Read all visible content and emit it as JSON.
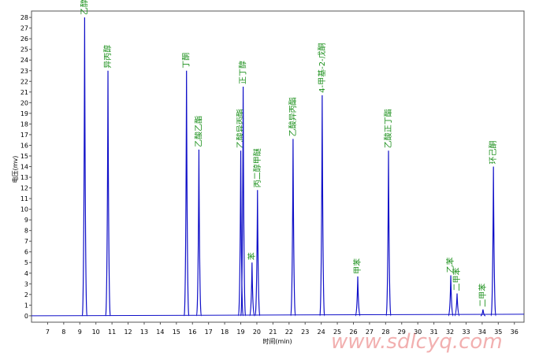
{
  "chart_data": {
    "type": "peaks",
    "xlabel": "时间(min)",
    "ylabel": "电压(mv)",
    "watermark": "www.sdlcyq.com",
    "xlim": [
      6,
      36.6
    ],
    "ylim": [
      -0.6,
      28.6
    ],
    "xticks": [
      7,
      8,
      9,
      10,
      11,
      12,
      13,
      14,
      15,
      16,
      17,
      18,
      19,
      20,
      21,
      22,
      23,
      24,
      25,
      26,
      27,
      28,
      29,
      30,
      31,
      32,
      33,
      34,
      35,
      36
    ],
    "yticks": [
      0,
      1,
      2,
      3,
      4,
      5,
      6,
      7,
      8,
      9,
      10,
      11,
      12,
      13,
      14,
      15,
      16,
      17,
      18,
      19,
      20,
      21,
      22,
      23,
      24,
      25,
      26,
      27,
      28
    ],
    "color": "#1010c8",
    "label_color": "#1a8f1a",
    "x": [
      9.3,
      10.75,
      15.63,
      16.4,
      19.0,
      19.15,
      19.7,
      20.04,
      22.25,
      24.06,
      26.27,
      28.18,
      32.05,
      32.44,
      34.05,
      34.7
    ],
    "values": [
      28,
      23,
      23,
      15.6,
      15.5,
      21.5,
      5,
      11.8,
      16.6,
      20.7,
      3.7,
      15.5,
      3.8,
      2.1,
      0.6,
      14
    ],
    "labels": [
      "乙醇",
      "异丙醇",
      "丁酮",
      "乙酸乙酯",
      "乙酸异丙酯",
      "正丁醇",
      "苯",
      "丙二醇甲醚",
      "乙酸异丙酯",
      "4-甲基-2-戊酮",
      "甲苯",
      "乙酸正丁酯",
      "乙苯",
      "二甲苯",
      "二甲苯",
      "环己酮"
    ]
  }
}
